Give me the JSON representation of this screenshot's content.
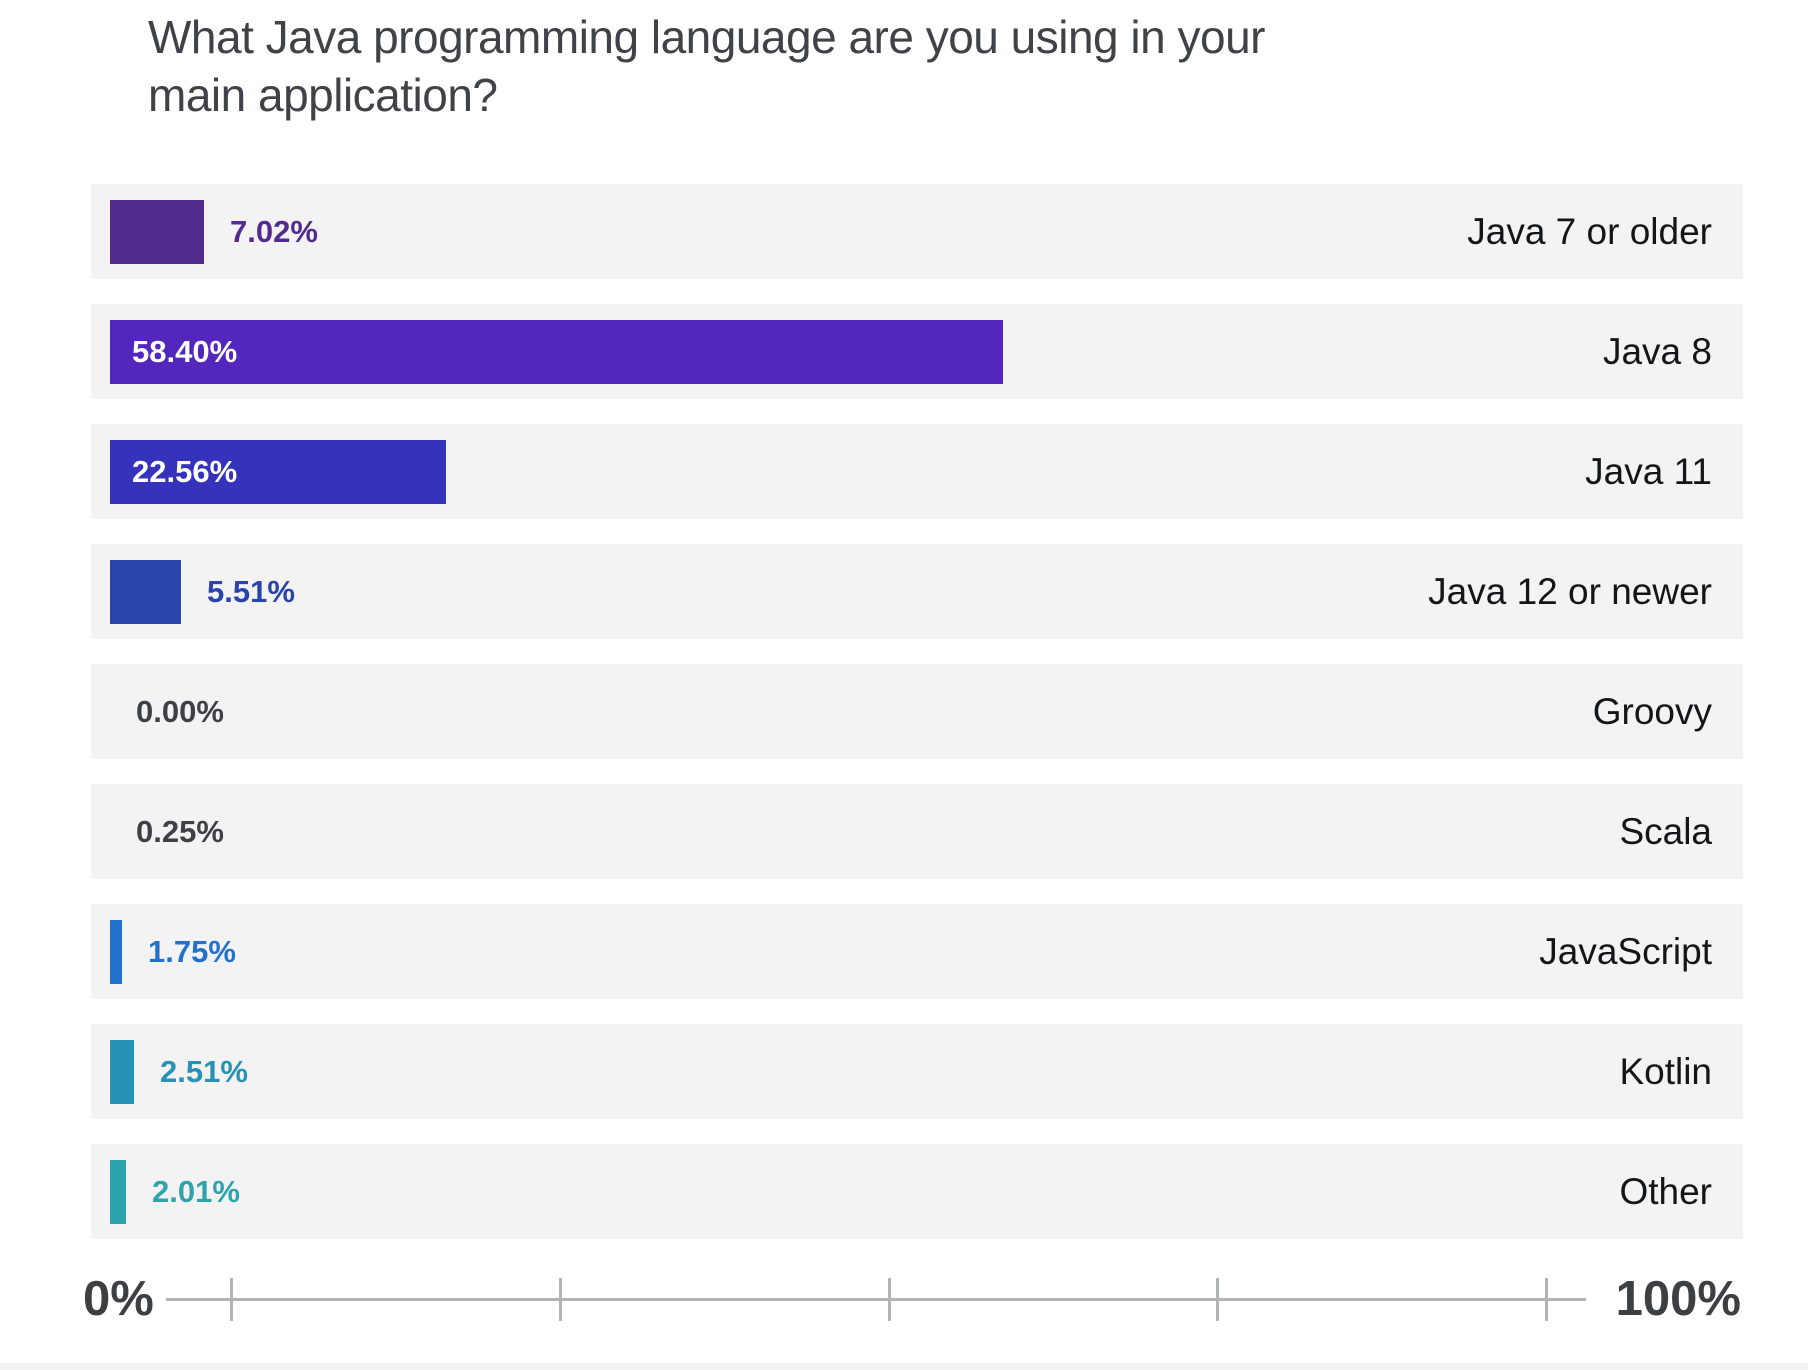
{
  "chart_data": {
    "type": "bar",
    "orientation": "horizontal",
    "title": "What Java programming language are you using in your main application?",
    "categories": [
      "Java 7 or older",
      "Java 8",
      "Java 11",
      "Java 12 or newer",
      "Groovy",
      "Scala",
      "JavaScript",
      "Kotlin",
      "Other"
    ],
    "values": [
      7.02,
      58.4,
      22.56,
      5.51,
      0.0,
      0.25,
      1.75,
      2.51,
      2.01
    ],
    "value_labels": [
      "7.02%",
      "58.40%",
      "22.56%",
      "5.51%",
      "0.00%",
      "0.25%",
      "1.75%",
      "2.51%",
      "2.01%"
    ],
    "bar_colors": [
      "#512b8e",
      "#5327be",
      "#3532bc",
      "#2945ad",
      "#3d4045",
      "#3d4045",
      "#2471cc",
      "#2792b5",
      "#2da3ab"
    ],
    "value_label_inside": [
      false,
      true,
      true,
      false,
      false,
      false,
      false,
      false,
      false
    ],
    "xlabel": "",
    "ylabel": "",
    "xlim": [
      0,
      100
    ],
    "x_tick_values": [
      0,
      25,
      50,
      75,
      100
    ],
    "grid": false,
    "legend": "none",
    "axis": {
      "min_label": "0%",
      "max_label": "100%"
    },
    "row_background": "#f3f3f4",
    "title_color": "#3f4347",
    "category_color": "#131619",
    "axis_color": "#b1b4b6",
    "axis_label_color": "#3c4043"
  }
}
